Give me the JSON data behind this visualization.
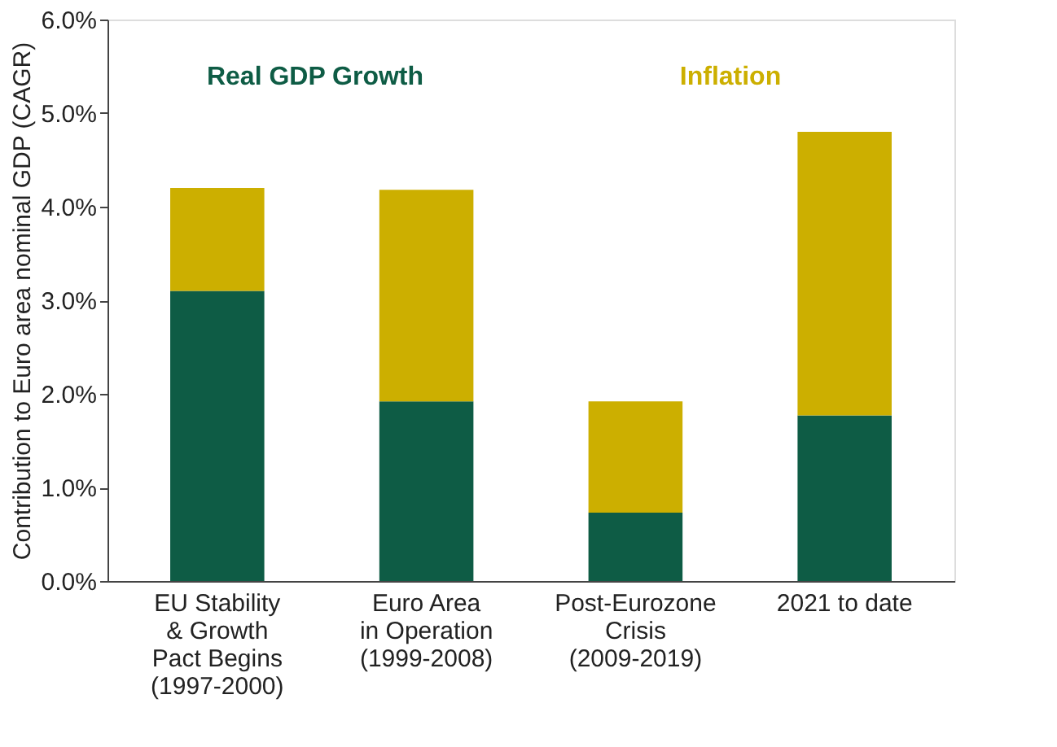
{
  "chart_data": {
    "type": "bar",
    "stacked": true,
    "categories": [
      "EU Stability\n& Growth\nPact Begins\n(1997-2000)",
      "Euro Area\nin Operation\n(1999-2008)",
      "Post-Eurozone\nCrisis\n(2009-2019)",
      "2021 to date"
    ],
    "series": [
      {
        "name": "Real GDP Growth",
        "color": "#0e5c45",
        "values": [
          3.1,
          1.92,
          0.73,
          1.77
        ]
      },
      {
        "name": "Inflation",
        "color": "#ccaf00",
        "values": [
          1.1,
          2.26,
          1.19,
          3.03
        ]
      }
    ],
    "ylabel": "Contribution to Euro area nominal GDP (CAGR)",
    "ylim": [
      0,
      6
    ],
    "yticks": [
      {
        "value": 0,
        "label": "0.0%"
      },
      {
        "value": 1,
        "label": "1.0%"
      },
      {
        "value": 2,
        "label": "2.0%"
      },
      {
        "value": 3,
        "label": "3.0%"
      },
      {
        "value": 4,
        "label": "4.0%"
      },
      {
        "value": 5,
        "label": "5.0%"
      },
      {
        "value": 6,
        "label": "6.0%"
      }
    ],
    "grid": false,
    "legend": "top"
  }
}
